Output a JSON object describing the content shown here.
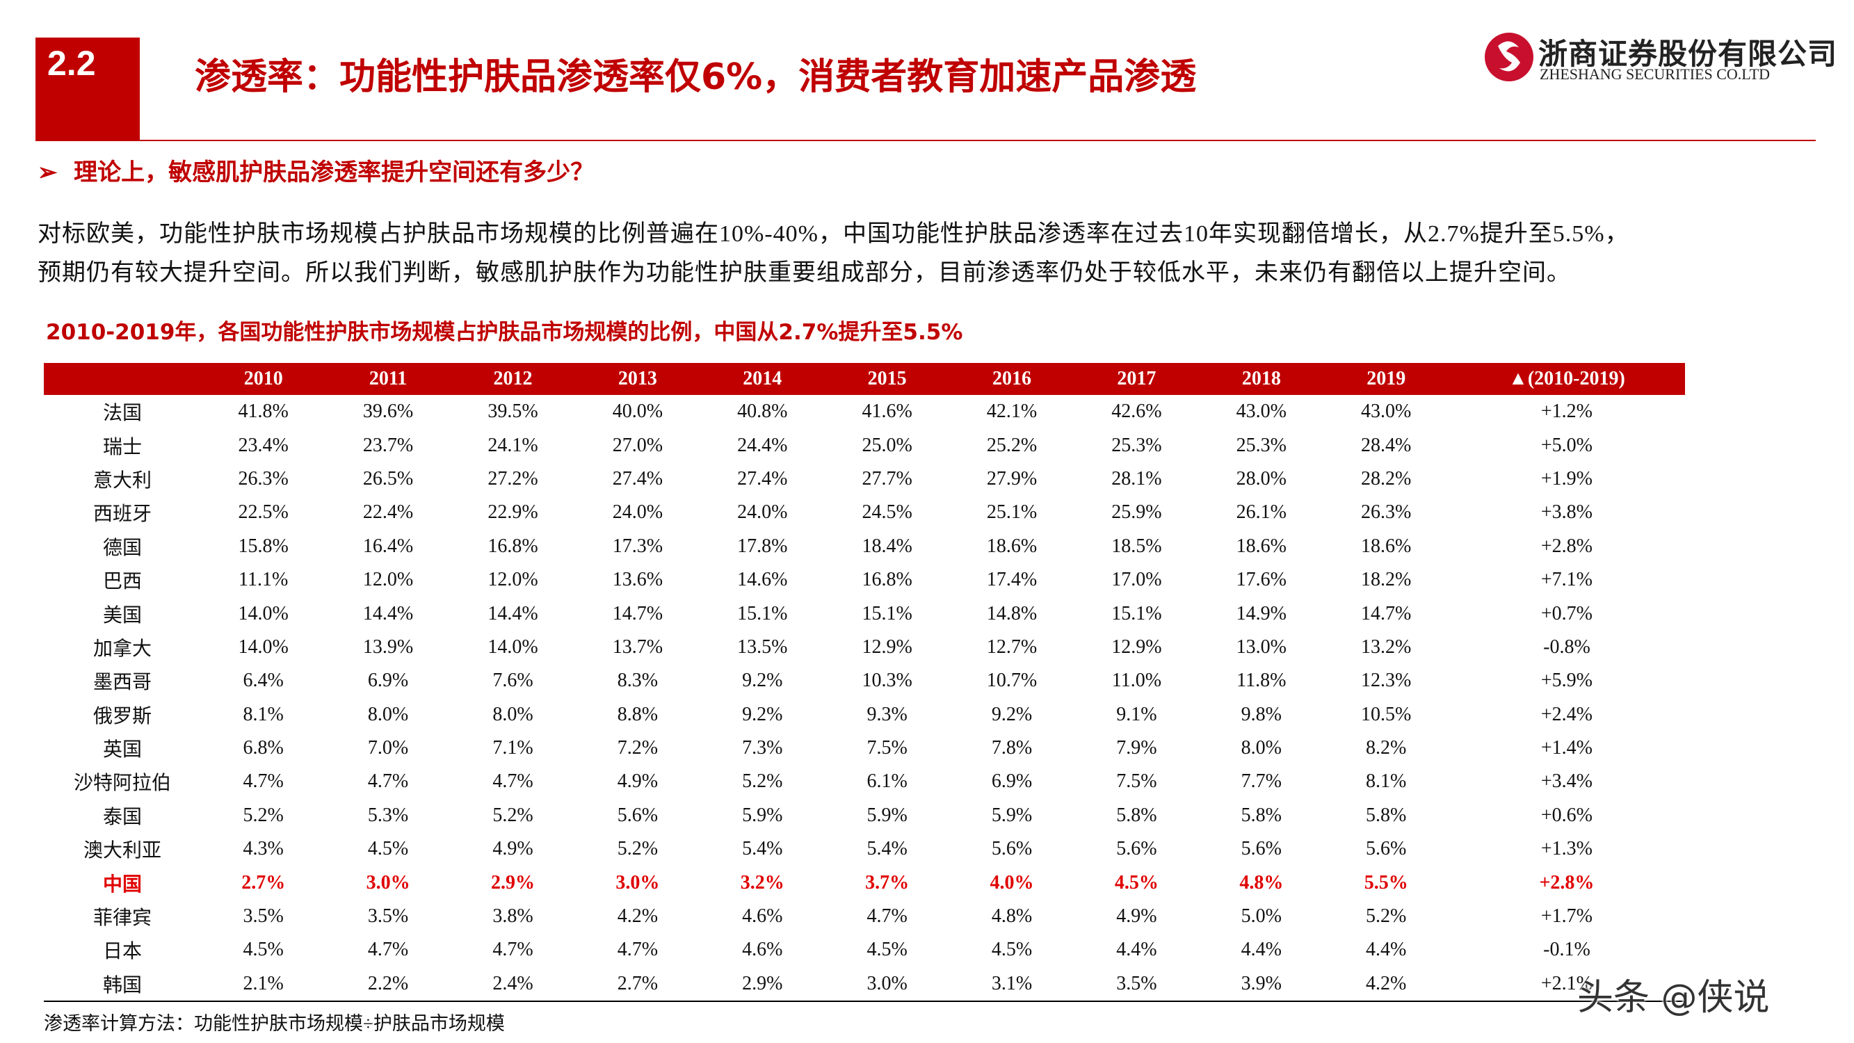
{
  "header": {
    "section": "2.2",
    "title": "渗透率：功能性护肤品渗透率仅6%，消费者教育加速产品渗透",
    "logo_cn": "浙商证券股份有限公司",
    "logo_en": "ZHESHANG SECURITIES CO.LTD"
  },
  "bullet": "理论上，敏感肌护肤品渗透率提升空间还有多少？",
  "paragraph": [
    "对标欧美，功能性护肤市场规模占护肤品市场规模的比例普遍在10%-40%，中国功能性护肤品渗透率在过去10年实现翻倍增长，从2.7%提升至5.5%，",
    "预期仍有较大提升空间。所以我们判断，敏感肌护肤作为功能性护肤重要组成部分，目前渗透率仍处于较低水平，未来仍有翻倍以上提升空间。"
  ],
  "table": {
    "caption": "2010-2019年，各国功能性护肤市场规模占护肤品市场规模的比例，中国从2.7%提升至5.5%",
    "header": [
      "2010",
      "2011",
      "2012",
      "2013",
      "2014",
      "2015",
      "2016",
      "2017",
      "2018",
      "2019",
      "▲(2010-2019)"
    ],
    "rows": [
      [
        "法国",
        "41.8%",
        "39.6%",
        "39.5%",
        "40.0%",
        "40.8%",
        "41.6%",
        "42.1%",
        "42.6%",
        "43.0%",
        "43.0%",
        "+1.2%"
      ],
      [
        "瑞士",
        "23.4%",
        "23.7%",
        "24.1%",
        "27.0%",
        "24.4%",
        "25.0%",
        "25.2%",
        "25.3%",
        "25.3%",
        "28.4%",
        "+5.0%"
      ],
      [
        "意大利",
        "26.3%",
        "26.5%",
        "27.2%",
        "27.4%",
        "27.4%",
        "27.7%",
        "27.9%",
        "28.1%",
        "28.0%",
        "28.2%",
        "+1.9%"
      ],
      [
        "西班牙",
        "22.5%",
        "22.4%",
        "22.9%",
        "24.0%",
        "24.0%",
        "24.5%",
        "25.1%",
        "25.9%",
        "26.1%",
        "26.3%",
        "+3.8%"
      ],
      [
        "德国",
        "15.8%",
        "16.4%",
        "16.8%",
        "17.3%",
        "17.8%",
        "18.4%",
        "18.6%",
        "18.5%",
        "18.6%",
        "18.6%",
        "+2.8%"
      ],
      [
        "巴西",
        "11.1%",
        "12.0%",
        "12.0%",
        "13.6%",
        "14.6%",
        "16.8%",
        "17.4%",
        "17.0%",
        "17.6%",
        "18.2%",
        "+7.1%"
      ],
      [
        "美国",
        "14.0%",
        "14.4%",
        "14.4%",
        "14.7%",
        "15.1%",
        "15.1%",
        "14.8%",
        "15.1%",
        "14.9%",
        "14.7%",
        "+0.7%"
      ],
      [
        "加拿大",
        "14.0%",
        "13.9%",
        "14.0%",
        "13.7%",
        "13.5%",
        "12.9%",
        "12.7%",
        "12.9%",
        "13.0%",
        "13.2%",
        "-0.8%"
      ],
      [
        "墨西哥",
        "6.4%",
        "6.9%",
        "7.6%",
        "8.3%",
        "9.2%",
        "10.3%",
        "10.7%",
        "11.0%",
        "11.8%",
        "12.3%",
        "+5.9%"
      ],
      [
        "俄罗斯",
        "8.1%",
        "8.0%",
        "8.0%",
        "8.8%",
        "9.2%",
        "9.3%",
        "9.2%",
        "9.1%",
        "9.8%",
        "10.5%",
        "+2.4%"
      ],
      [
        "英国",
        "6.8%",
        "7.0%",
        "7.1%",
        "7.2%",
        "7.3%",
        "7.5%",
        "7.8%",
        "7.9%",
        "8.0%",
        "8.2%",
        "+1.4%"
      ],
      [
        "沙特阿拉伯",
        "4.7%",
        "4.7%",
        "4.7%",
        "4.9%",
        "5.2%",
        "6.1%",
        "6.9%",
        "7.5%",
        "7.7%",
        "8.1%",
        "+3.4%"
      ],
      [
        "泰国",
        "5.2%",
        "5.3%",
        "5.2%",
        "5.6%",
        "5.9%",
        "5.9%",
        "5.9%",
        "5.8%",
        "5.8%",
        "5.8%",
        "+0.6%"
      ],
      [
        "澳大利亚",
        "4.3%",
        "4.5%",
        "4.9%",
        "5.2%",
        "5.4%",
        "5.4%",
        "5.6%",
        "5.6%",
        "5.6%",
        "5.6%",
        "+1.3%"
      ],
      [
        "中国",
        "2.7%",
        "3.0%",
        "2.9%",
        "3.0%",
        "3.2%",
        "3.7%",
        "4.0%",
        "4.5%",
        "4.8%",
        "5.5%",
        "+2.8%"
      ],
      [
        "菲律宾",
        "3.5%",
        "3.5%",
        "3.8%",
        "4.2%",
        "4.6%",
        "4.7%",
        "4.8%",
        "4.9%",
        "5.0%",
        "5.2%",
        "+1.7%"
      ],
      [
        "日本",
        "4.5%",
        "4.7%",
        "4.7%",
        "4.7%",
        "4.6%",
        "4.5%",
        "4.5%",
        "4.4%",
        "4.4%",
        "4.4%",
        "-0.1%"
      ],
      [
        "韩国",
        "2.1%",
        "2.2%",
        "2.4%",
        "2.7%",
        "2.9%",
        "3.0%",
        "3.1%",
        "3.5%",
        "3.9%",
        "4.2%",
        "+2.1%"
      ]
    ]
  },
  "footnote": "渗透率计算方法：功能性护肤市场规模÷护肤品市场规模",
  "watermark": "头条 @侠说"
}
